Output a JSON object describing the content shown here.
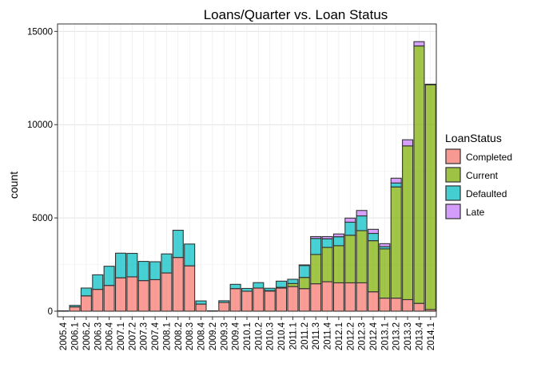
{
  "chart_data": {
    "type": "bar",
    "stacked": true,
    "title": "Loans/Quarter vs. Loan Status",
    "xlabel": "",
    "ylabel": "count",
    "ylim": [
      -300,
      15400
    ],
    "yticks": [
      0,
      5000,
      10000,
      15000
    ],
    "grid": true,
    "legend": {
      "title": "LoanStatus",
      "placement": "right"
    },
    "categories": [
      "2005.4",
      "2006.1",
      "2006.2",
      "2006.3",
      "2006.4",
      "2007.1",
      "2007.2",
      "2007.3",
      "2007.4",
      "2008.1",
      "2008.2",
      "2008.3",
      "2008.4",
      "2009.2",
      "2009.3",
      "2009.4",
      "2010.1",
      "2010.2",
      "2010.3",
      "2010.4",
      "2011.1",
      "2011.2",
      "2011.3",
      "2011.4",
      "2012.1",
      "2012.2",
      "2012.3",
      "2012.4",
      "2013.1",
      "2013.2",
      "2013.3",
      "2013.4",
      "2014.1"
    ],
    "series": [
      {
        "name": "Completed",
        "color": "#F8766D",
        "values": [
          20,
          230,
          820,
          1170,
          1380,
          1790,
          1840,
          1640,
          1690,
          2050,
          2880,
          2430,
          380,
          20,
          470,
          1210,
          1070,
          1240,
          1080,
          1240,
          1320,
          1210,
          1470,
          1580,
          1520,
          1520,
          1520,
          1040,
          700,
          700,
          620,
          420,
          90
        ]
      },
      {
        "name": "Current",
        "color": "#7CAE00",
        "values": [
          0,
          0,
          0,
          0,
          0,
          0,
          0,
          0,
          0,
          0,
          0,
          0,
          0,
          0,
          0,
          0,
          0,
          0,
          20,
          40,
          160,
          600,
          1570,
          1840,
          1990,
          2550,
          2800,
          2740,
          2640,
          5960,
          8240,
          13800,
          12050
        ]
      },
      {
        "name": "Defaulted",
        "color": "#00BFC4",
        "values": [
          0,
          80,
          420,
          780,
          1030,
          1320,
          1260,
          1030,
          960,
          1020,
          1460,
          1170,
          170,
          0,
          90,
          230,
          150,
          290,
          130,
          330,
          230,
          640,
          860,
          460,
          480,
          700,
          790,
          390,
          120,
          210,
          0,
          0,
          0
        ]
      },
      {
        "name": "Late",
        "color": "#C77CFF",
        "values": [
          0,
          0,
          0,
          0,
          0,
          0,
          0,
          0,
          0,
          0,
          0,
          0,
          0,
          0,
          0,
          0,
          0,
          0,
          0,
          0,
          0,
          30,
          100,
          120,
          150,
          220,
          290,
          220,
          160,
          260,
          330,
          230,
          30
        ]
      }
    ]
  }
}
